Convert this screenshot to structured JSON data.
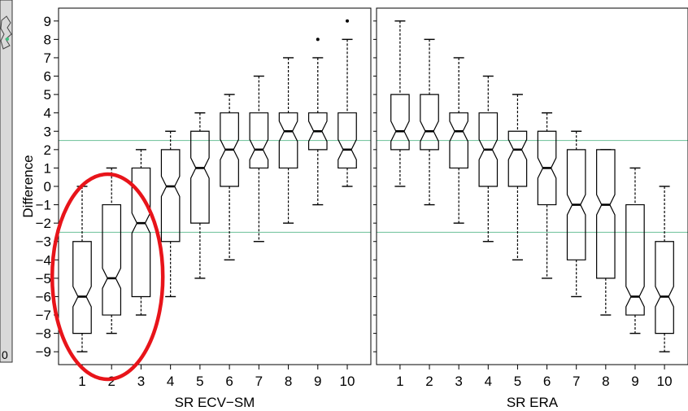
{
  "panel": {
    "left_strip_label": "0"
  },
  "chart_data": [
    {
      "type": "box",
      "notched": true,
      "title": "",
      "xlabel": "SR ECV−SM",
      "ylabel": "Difference",
      "categories": [
        "1",
        "2",
        "3",
        "4",
        "5",
        "6",
        "7",
        "8",
        "9",
        "10"
      ],
      "yticks": [
        -9,
        -8,
        -7,
        -6,
        -5,
        -4,
        -3,
        -2,
        -1,
        0,
        1,
        2,
        3,
        4,
        5,
        6,
        7,
        8,
        9
      ],
      "ytick_labels": [
        "−9",
        "−8",
        "−7",
        "−6",
        "−5",
        "−4",
        "−3",
        "−2",
        "−1",
        "0",
        "1",
        "2",
        "3",
        "4",
        "5",
        "6",
        "7",
        "8",
        "9"
      ],
      "ylim": [
        -9.7,
        9.7
      ],
      "reference_lines": [
        2.5,
        -2.5
      ],
      "reference_line_color": "#7cc7a3",
      "boxes": [
        {
          "min": -9,
          "q1": -8,
          "median": -6,
          "q3": -3,
          "max": 0,
          "outliers": []
        },
        {
          "min": -8,
          "q1": -7,
          "median": -5,
          "q3": -1,
          "max": 1,
          "outliers": []
        },
        {
          "min": -7,
          "q1": -6,
          "median": -2,
          "q3": 1,
          "max": 2,
          "outliers": []
        },
        {
          "min": -6,
          "q1": -3,
          "median": 0,
          "q3": 2,
          "max": 3,
          "outliers": []
        },
        {
          "min": -5,
          "q1": -2,
          "median": 1,
          "q3": 3,
          "max": 4,
          "outliers": []
        },
        {
          "min": -4,
          "q1": 0,
          "median": 2,
          "q3": 4,
          "max": 5,
          "outliers": []
        },
        {
          "min": -3,
          "q1": 1,
          "median": 2,
          "q3": 4,
          "max": 6,
          "outliers": []
        },
        {
          "min": -2,
          "q1": 1,
          "median": 3,
          "q3": 4,
          "max": 7,
          "outliers": []
        },
        {
          "min": -1,
          "q1": 2,
          "median": 3,
          "q3": 4,
          "max": 7,
          "outliers": [
            8
          ]
        },
        {
          "min": 0,
          "q1": 1,
          "median": 2,
          "q3": 4,
          "max": 8,
          "outliers": [
            9
          ]
        }
      ],
      "annotation": {
        "shape": "ellipse",
        "color": "#e8141a",
        "highlights_categories": [
          "1",
          "2",
          "3"
        ]
      }
    },
    {
      "type": "box",
      "notched": true,
      "title": "",
      "xlabel": "SR ERA",
      "ylabel": "",
      "categories": [
        "1",
        "2",
        "3",
        "4",
        "5",
        "6",
        "7",
        "8",
        "9",
        "10"
      ],
      "ylim": [
        -9.7,
        9.7
      ],
      "reference_lines": [
        2.5,
        -2.5
      ],
      "reference_line_color": "#7cc7a3",
      "boxes": [
        {
          "min": 0,
          "q1": 2,
          "median": 3,
          "q3": 5,
          "max": 9,
          "outliers": []
        },
        {
          "min": -1,
          "q1": 2,
          "median": 3,
          "q3": 5,
          "max": 8,
          "outliers": []
        },
        {
          "min": -2,
          "q1": 1,
          "median": 3,
          "q3": 4,
          "max": 7,
          "outliers": []
        },
        {
          "min": -3,
          "q1": 0,
          "median": 2,
          "q3": 4,
          "max": 6,
          "outliers": []
        },
        {
          "min": -4,
          "q1": 0,
          "median": 2,
          "q3": 3,
          "max": 5,
          "outliers": []
        },
        {
          "min": -5,
          "q1": -1,
          "median": 1,
          "q3": 3,
          "max": 4,
          "outliers": []
        },
        {
          "min": -6,
          "q1": -4,
          "median": -1,
          "q3": 2,
          "max": 3,
          "outliers": []
        },
        {
          "min": -7,
          "q1": -5,
          "median": -1,
          "q3": 2,
          "max": 2,
          "outliers": []
        },
        {
          "min": -8,
          "q1": -7,
          "median": -6,
          "q3": -1,
          "max": 1,
          "outliers": []
        },
        {
          "min": -9,
          "q1": -8,
          "median": -6,
          "q3": -3,
          "max": 0,
          "outliers": []
        }
      ]
    }
  ]
}
